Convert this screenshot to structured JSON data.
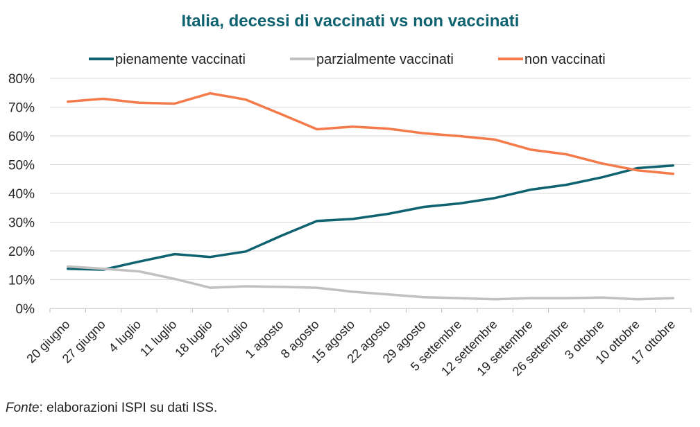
{
  "chart_data": {
    "type": "line",
    "title": "Italia, decessi di vaccinati vs non vaccinati",
    "xlabel": "",
    "ylabel": "",
    "ylim": [
      0,
      80
    ],
    "yticks": [
      0,
      10,
      20,
      30,
      40,
      50,
      60,
      70,
      80
    ],
    "ytick_labels": [
      "0%",
      "10%",
      "20%",
      "30%",
      "40%",
      "50%",
      "60%",
      "70%",
      "80%"
    ],
    "grid": true,
    "legend_position": "top",
    "categories": [
      "20 giugno",
      "27 giugno",
      "4 luglio",
      "11 luglio",
      "18 luglio",
      "25 luglio",
      "1 agosto",
      "8 agosto",
      "15 agosto",
      "22 agosto",
      "29 agosto",
      "5 settembre",
      "12 settembre",
      "19 settembre",
      "26 settembre",
      "3 ottobre",
      "10 ottobre",
      "17 ottobre"
    ],
    "series": [
      {
        "name": "pienamente vaccinati",
        "color": "#0f6270",
        "values": [
          13.8,
          13.5,
          16.3,
          18.9,
          17.9,
          19.8,
          25.3,
          30.4,
          31.1,
          32.9,
          35.3,
          36.5,
          38.4,
          41.3,
          43.0,
          45.6,
          48.8,
          49.7
        ]
      },
      {
        "name": "parzialmente vaccinati",
        "color": "#c0c0c0",
        "values": [
          14.6,
          13.8,
          12.9,
          10.3,
          7.2,
          7.7,
          7.5,
          7.2,
          5.8,
          4.9,
          3.9,
          3.6,
          3.2,
          3.6,
          3.6,
          3.8,
          3.2,
          3.6
        ]
      },
      {
        "name": "non vaccinati",
        "color": "#f47a4a",
        "values": [
          71.9,
          72.9,
          71.5,
          71.2,
          74.8,
          72.6,
          67.5,
          62.3,
          63.2,
          62.5,
          60.9,
          59.9,
          58.7,
          55.2,
          53.6,
          50.4,
          48.0,
          46.8
        ]
      }
    ]
  },
  "footer": {
    "source_label": "Fonte",
    "source_text": ": elaborazioni ISPI su dati ISS."
  }
}
